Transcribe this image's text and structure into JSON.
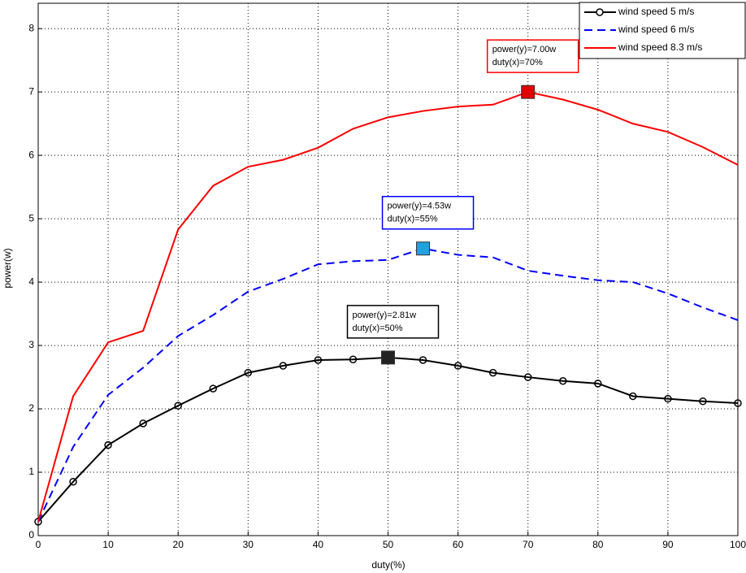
{
  "chart_data": {
    "type": "line",
    "xlabel": "duty(%)",
    "ylabel": "power(w)",
    "x": [
      0,
      5,
      10,
      15,
      20,
      25,
      30,
      35,
      40,
      45,
      50,
      55,
      60,
      65,
      70,
      75,
      80,
      85,
      90,
      95,
      100
    ],
    "series": [
      {
        "name": "wind speed 5 m/s",
        "color": "#000000",
        "style": "solid",
        "marker": "circle",
        "values": [
          0.22,
          0.85,
          1.43,
          1.77,
          2.05,
          2.32,
          2.57,
          2.68,
          2.77,
          2.78,
          2.81,
          2.77,
          2.68,
          2.57,
          2.5,
          2.44,
          2.4,
          2.2,
          2.16,
          2.12,
          2.09
        ],
        "annotation": {
          "lines": [
            "power(y)=2.81w",
            "duty(x)=50%"
          ],
          "color": "#000000",
          "marker_color": "#222222"
        }
      },
      {
        "name": "wind speed 6 m/s",
        "color": "#0000ff",
        "style": "dashed",
        "values": [
          0.22,
          1.4,
          2.22,
          2.65,
          3.15,
          3.48,
          3.85,
          4.05,
          4.28,
          4.33,
          4.35,
          4.53,
          4.43,
          4.39,
          4.18,
          4.1,
          4.03,
          4.0,
          3.82,
          3.6,
          3.4
        ],
        "annotation": {
          "lines": [
            "power(y)=4.53w",
            "duty(x)=55%"
          ],
          "color": "#0000ff",
          "marker_color": "#22a0e0"
        }
      },
      {
        "name": "wind speed 8.3 m/s",
        "color": "#ff0000",
        "style": "solid",
        "values": [
          0.22,
          2.2,
          3.05,
          3.23,
          4.83,
          5.52,
          5.82,
          5.93,
          6.12,
          6.42,
          6.6,
          6.7,
          6.77,
          6.8,
          7.0,
          6.88,
          6.72,
          6.5,
          6.37,
          6.13,
          5.85
        ],
        "annotation": {
          "lines": [
            "power(y)=7.00w",
            "duty(x)=70%"
          ],
          "color": "#ff0000",
          "marker_color": "#e00000"
        }
      }
    ],
    "xlim": [
      0,
      100
    ],
    "xticks": [
      0,
      10,
      20,
      30,
      40,
      50,
      60,
      70,
      80,
      90,
      100
    ],
    "ylim": [
      0,
      8.4
    ],
    "yticks": [
      0,
      1,
      2,
      3,
      4,
      5,
      6,
      7,
      8
    ],
    "grid": true,
    "legend": "top-right"
  }
}
